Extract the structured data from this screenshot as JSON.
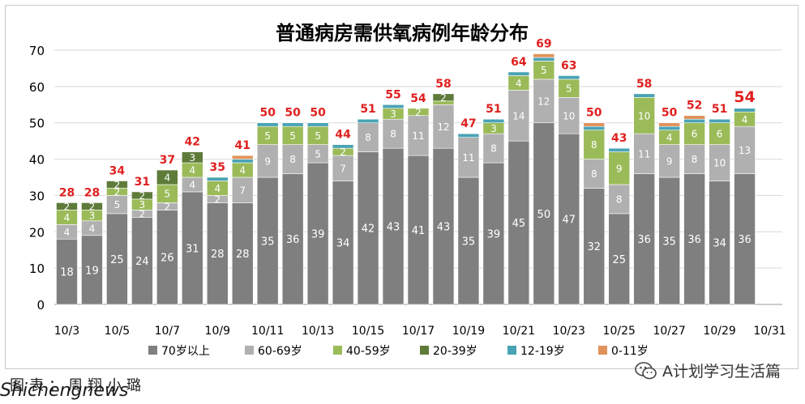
{
  "chart_data": {
    "type": "bar",
    "stacked": true,
    "title": "普通病房需供氧病例年龄分布",
    "ylim": [
      0,
      70
    ],
    "yticks": [
      0,
      10,
      20,
      30,
      40,
      50,
      60,
      70
    ],
    "grid": true,
    "legend_position": "bottom",
    "categories": [
      "10/3",
      "10/4",
      "10/5",
      "10/6",
      "10/7",
      "10/8",
      "10/9",
      "10/10",
      "10/11",
      "10/12",
      "10/13",
      "10/14",
      "10/15",
      "10/16",
      "10/17",
      "10/18",
      "10/19",
      "10/20",
      "10/21",
      "10/22",
      "10/23",
      "10/24",
      "10/25",
      "10/26",
      "10/27",
      "10/28",
      "10/29",
      "10/30",
      "10/31"
    ],
    "x_tick_labels": [
      "10/3",
      "",
      "10/5",
      "",
      "10/7",
      "",
      "10/9",
      "",
      "10/11",
      "",
      "10/13",
      "",
      "10/15",
      "",
      "10/17",
      "",
      "10/19",
      "",
      "10/21",
      "",
      "10/23",
      "",
      "10/25",
      "",
      "10/27",
      "",
      "10/29",
      "",
      "10/31"
    ],
    "series": [
      {
        "name": "70岁以上",
        "color": "#7f7f7f",
        "values": [
          18,
          19,
          25,
          24,
          26,
          31,
          28,
          28,
          35,
          36,
          39,
          34,
          42,
          43,
          41,
          43,
          35,
          39,
          45,
          50,
          47,
          32,
          25,
          36,
          35,
          36,
          34,
          36,
          null
        ]
      },
      {
        "name": "60-69岁",
        "color": "#b0b0b0",
        "values": [
          4,
          4,
          5,
          2,
          2,
          4,
          2,
          7,
          9,
          8,
          5,
          7,
          8,
          8,
          11,
          12,
          11,
          8,
          14,
          12,
          10,
          8,
          8,
          11,
          9,
          8,
          10,
          13,
          null
        ]
      },
      {
        "name": "40-59岁",
        "color": "#9bbb59",
        "values": [
          4,
          3,
          2,
          3,
          5,
          4,
          4,
          4,
          5,
          5,
          5,
          2,
          0,
          3,
          2,
          1,
          0,
          3,
          4,
          5,
          5,
          8,
          9,
          10,
          4,
          6,
          6,
          4,
          null
        ]
      },
      {
        "name": "20-39岁",
        "color": "#5e7b3a",
        "values": [
          2,
          2,
          2,
          2,
          4,
          3,
          0,
          0,
          0,
          0,
          0,
          0,
          0,
          0,
          0,
          2,
          0,
          0,
          0,
          0,
          0,
          0,
          0,
          0,
          0,
          0,
          0,
          0,
          null
        ]
      },
      {
        "name": "12-19岁",
        "color": "#4aa3b5",
        "values": [
          0,
          0,
          0,
          0,
          0,
          0,
          1,
          1,
          1,
          1,
          1,
          1,
          1,
          1,
          0,
          0,
          1,
          1,
          1,
          1,
          1,
          1,
          1,
          1,
          1,
          1,
          1,
          1,
          null
        ]
      },
      {
        "name": "0-11岁",
        "color": "#e0925a",
        "values": [
          0,
          0,
          0,
          0,
          0,
          0,
          0,
          1,
          0,
          0,
          0,
          0,
          0,
          0,
          0,
          0,
          0,
          0,
          0,
          1,
          0,
          1,
          0,
          0,
          1,
          1,
          0,
          0,
          null
        ]
      }
    ],
    "totals": [
      28,
      28,
      34,
      31,
      37,
      42,
      35,
      41,
      50,
      50,
      50,
      44,
      51,
      55,
      54,
      58,
      47,
      51,
      64,
      69,
      63,
      50,
      43,
      58,
      50,
      52,
      51,
      54,
      null
    ],
    "total_label_color": "#e02020"
  },
  "credits": {
    "left": "图表：周翔小璐",
    "right": "A计划学习生活篇",
    "watermark": "Shichengnews"
  },
  "colors": {
    "grid": "#d9d9d9",
    "axis": "#000000",
    "label_light": "#ffffff",
    "label_dark": "#333333"
  }
}
